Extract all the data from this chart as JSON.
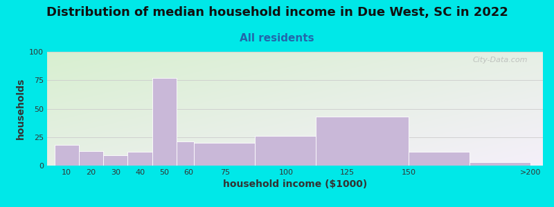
{
  "title": "Distribution of median household income in Due West, SC in 2022",
  "subtitle": "All residents",
  "xlabel": "household income ($1000)",
  "ylabel": "households",
  "bar_values": [
    18,
    13,
    9,
    12,
    77,
    21,
    20,
    26,
    43,
    12,
    3
  ],
  "bar_lefts": [
    5,
    15,
    25,
    35,
    45,
    55,
    62,
    87,
    112,
    150,
    175
  ],
  "bar_widths": [
    10,
    10,
    10,
    10,
    10,
    7,
    25,
    25,
    38,
    25,
    25
  ],
  "xtick_pos": [
    10,
    20,
    30,
    40,
    50,
    60,
    75,
    100,
    125,
    150,
    200
  ],
  "xtick_labels": [
    "10",
    "20",
    "30",
    "40",
    "50",
    "60",
    "75",
    "100",
    "125",
    "150",
    ">200"
  ],
  "bar_color": "#c9b8d8",
  "bar_edge_color": "#ffffff",
  "ylim": [
    0,
    100
  ],
  "yticks": [
    0,
    25,
    50,
    75,
    100
  ],
  "bg_color_tl": "#d8efd0",
  "bg_color_br": "#f5f0fa",
  "outer_bg": "#00e8e8",
  "title_color": "#111111",
  "subtitle_color": "#2266aa",
  "axis_label_color": "#333333",
  "grid_color": "#cccccc",
  "watermark": "City-Data.com",
  "title_fontsize": 13,
  "subtitle_fontsize": 11,
  "tick_fontsize": 8,
  "axis_label_fontsize": 10
}
